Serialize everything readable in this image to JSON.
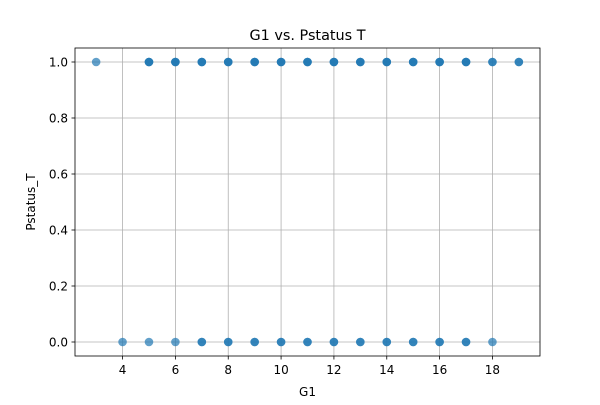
{
  "chart_data": {
    "type": "scatter",
    "title": "G1 vs. Pstatus T",
    "xlabel": "G1",
    "ylabel": "Pstatus_T",
    "xlim": [
      2.2,
      19.8
    ],
    "ylim": [
      -0.05,
      1.05
    ],
    "xticks": [
      4,
      6,
      8,
      10,
      12,
      14,
      16,
      18
    ],
    "yticks": [
      0.0,
      0.2,
      0.4,
      0.6,
      0.8,
      1.0
    ],
    "xtick_labels": [
      "4",
      "6",
      "8",
      "10",
      "12",
      "14",
      "16",
      "18"
    ],
    "ytick_labels": [
      "0.0",
      "0.2",
      "0.4",
      "0.6",
      "0.8",
      "1.0"
    ],
    "grid": true,
    "marker_color": "#1f77b4",
    "marker_alpha": 0.7,
    "series": [
      {
        "x": [
          3,
          5,
          6,
          7,
          8,
          9,
          10,
          11,
          12,
          13,
          14,
          15,
          16,
          17,
          18,
          19,
          4,
          5,
          6,
          7,
          8,
          9,
          10,
          11,
          12,
          13,
          14,
          15,
          16,
          17,
          18
        ],
        "y": [
          1,
          1,
          1,
          1,
          1,
          1,
          1,
          1,
          1,
          1,
          1,
          1,
          1,
          1,
          1,
          1,
          0,
          0,
          0,
          0,
          0,
          0,
          0,
          0,
          0,
          0,
          0,
          0,
          0,
          0,
          0
        ],
        "weight": [
          1,
          3,
          3,
          3,
          3,
          3,
          3,
          3,
          3,
          3,
          3,
          3,
          3,
          3,
          2,
          2,
          1,
          1,
          1,
          2,
          2,
          2,
          2,
          2,
          2,
          2,
          2,
          2,
          2,
          2,
          1
        ]
      }
    ]
  }
}
